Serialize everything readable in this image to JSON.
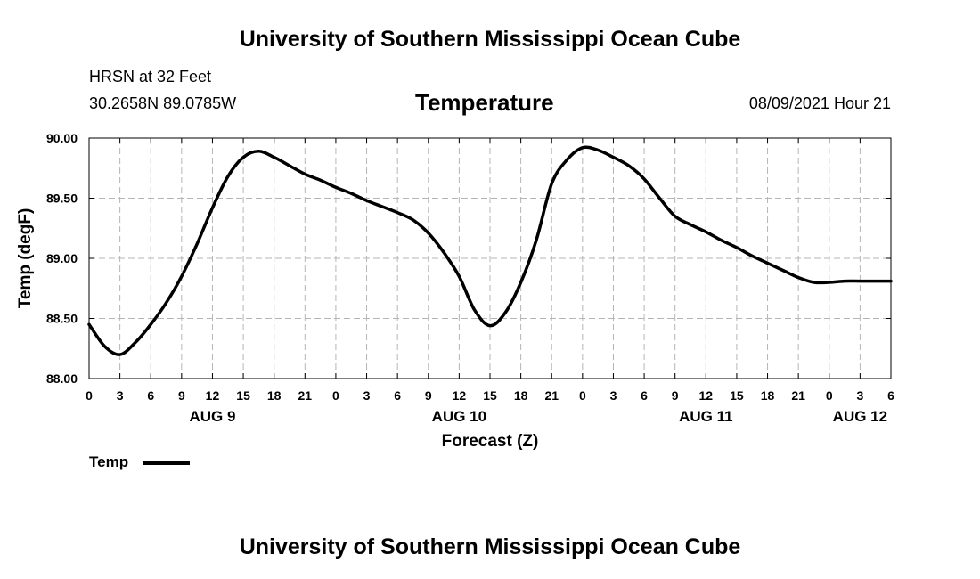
{
  "page": {
    "top_title": "University of Southern Mississippi Ocean Cube",
    "bottom_title": "University of Southern Mississippi Ocean Cube",
    "station": "HRSN at 32 Feet",
    "location": "30.2658N  89.0785W",
    "chart_title": "Temperature",
    "timestamp": "08/09/2021 Hour 21"
  },
  "chart_data": {
    "type": "line",
    "title": "Temperature",
    "xlabel": "Forecast (Z)",
    "ylabel": "Temp (degF)",
    "xlim": [
      0,
      78
    ],
    "ylim": [
      88.0,
      90.0
    ],
    "grid": true,
    "y_ticks": [
      88.0,
      88.5,
      89.0,
      89.5,
      90.0
    ],
    "y_tick_labels": [
      "88.00",
      "88.50",
      "89.00",
      "89.50",
      "90.00"
    ],
    "x_ticks": [
      0,
      3,
      6,
      9,
      12,
      15,
      18,
      21,
      24,
      27,
      30,
      33,
      36,
      39,
      42,
      45,
      48,
      51,
      54,
      57,
      60,
      63,
      66,
      69,
      72,
      75,
      78
    ],
    "x_tick_labels": [
      "0",
      "3",
      "6",
      "9",
      "12",
      "15",
      "18",
      "21",
      "0",
      "3",
      "6",
      "9",
      "12",
      "15",
      "18",
      "21",
      "0",
      "3",
      "6",
      "9",
      "12",
      "15",
      "18",
      "21",
      "0",
      "3",
      "6"
    ],
    "day_labels": [
      {
        "hour": 12,
        "label": "AUG 9"
      },
      {
        "hour": 36,
        "label": "AUG 10"
      },
      {
        "hour": 60,
        "label": "AUG 11"
      },
      {
        "hour": 75,
        "label": "AUG 12"
      }
    ],
    "legend": {
      "position": "bottom-left",
      "entries": [
        "Temp"
      ]
    },
    "series": [
      {
        "name": "Temp",
        "color": "#000000",
        "x": [
          0,
          1.5,
          3,
          4.5,
          6,
          7.5,
          9,
          10.5,
          12,
          13.5,
          15,
          16.5,
          18,
          19.5,
          21,
          22.5,
          24,
          25.5,
          27,
          28.5,
          30,
          31.5,
          33,
          34.5,
          36,
          37.5,
          39,
          40.5,
          42,
          43.5,
          45,
          46.5,
          48,
          49.5,
          51,
          52.5,
          54,
          55.5,
          57,
          58.5,
          60,
          61.5,
          63,
          64.5,
          66,
          67.5,
          69,
          70.5,
          72,
          73.5,
          75,
          76.5,
          78
        ],
        "values": [
          88.45,
          88.27,
          88.2,
          88.3,
          88.45,
          88.63,
          88.85,
          89.12,
          89.42,
          89.68,
          89.84,
          89.89,
          89.84,
          89.77,
          89.7,
          89.65,
          89.59,
          89.54,
          89.48,
          89.43,
          89.38,
          89.32,
          89.21,
          89.05,
          88.85,
          88.57,
          88.44,
          88.55,
          88.8,
          89.15,
          89.62,
          89.82,
          89.92,
          89.9,
          89.84,
          89.77,
          89.66,
          89.5,
          89.35,
          89.28,
          89.22,
          89.15,
          89.09,
          89.02,
          88.96,
          88.9,
          88.84,
          88.8,
          88.8,
          88.81,
          88.81,
          88.81,
          88.81
        ]
      }
    ]
  }
}
